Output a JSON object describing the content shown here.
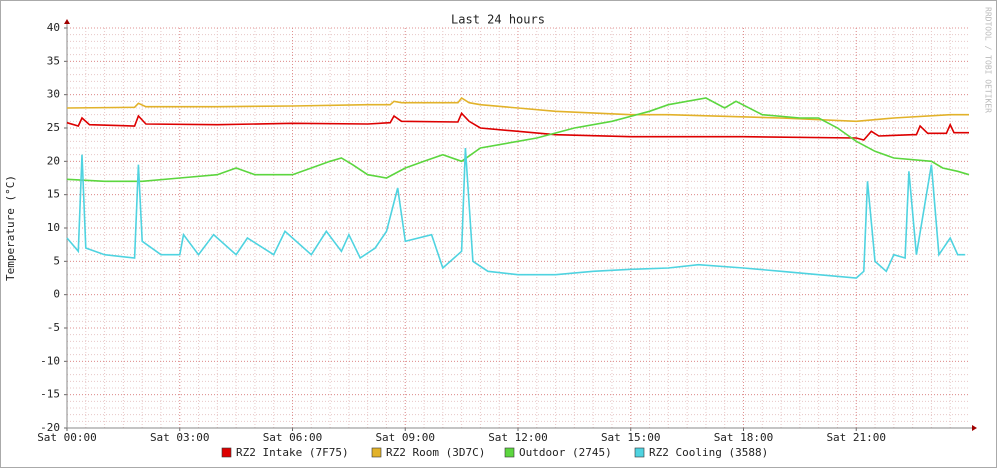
{
  "chart_data": {
    "type": "line",
    "title": "Last 24 hours",
    "y_label": "Temperature (°C)",
    "watermark": "RRDTOOL / TOBI OETIKER",
    "xlim": [
      0,
      24
    ],
    "xticks": [
      {
        "value": 0,
        "label": "Sat 00:00"
      },
      {
        "value": 3,
        "label": "Sat 03:00"
      },
      {
        "value": 6,
        "label": "Sat 06:00"
      },
      {
        "value": 9,
        "label": "Sat 09:00"
      },
      {
        "value": 12,
        "label": "Sat 12:00"
      },
      {
        "value": 15,
        "label": "Sat 15:00"
      },
      {
        "value": 18,
        "label": "Sat 18:00"
      },
      {
        "value": 21,
        "label": "Sat 21:00"
      }
    ],
    "ylim": [
      -20,
      40
    ],
    "yticks": [
      -20,
      -15,
      -10,
      -5,
      0,
      5,
      10,
      15,
      20,
      25,
      30,
      35,
      40
    ],
    "grid": true,
    "series": [
      {
        "name": "RZ2 Intake (7F75)",
        "color": "#dd0000",
        "x": [
          0,
          0.3,
          0.4,
          0.6,
          1.8,
          1.9,
          2.1,
          4,
          6,
          8,
          8.6,
          8.7,
          8.9,
          10.4,
          10.5,
          10.7,
          11,
          12,
          13,
          15,
          18,
          21,
          21.2,
          21.4,
          21.6,
          22.5,
          22.6,
          22.7,
          22.9,
          23.4,
          23.5,
          23.6,
          24
        ],
        "values": [
          25.8,
          25.3,
          26.5,
          25.5,
          25.3,
          26.8,
          25.6,
          25.5,
          25.7,
          25.6,
          25.8,
          26.8,
          26,
          25.9,
          27.2,
          26,
          25,
          24.5,
          24,
          23.7,
          23.7,
          23.5,
          23.2,
          24.5,
          23.8,
          24,
          24,
          25.3,
          24.2,
          24.2,
          25.5,
          24.3,
          24.3
        ]
      },
      {
        "name": "RZ2 Room (3D7C)",
        "color": "#e2b22a",
        "x": [
          0,
          1.8,
          1.9,
          2.1,
          4,
          6,
          8,
          8.6,
          8.7,
          8.9,
          10.4,
          10.5,
          10.7,
          11,
          12,
          13,
          15,
          16,
          19,
          21,
          22,
          23.5,
          24
        ],
        "values": [
          28,
          28.1,
          28.7,
          28.2,
          28.2,
          28.3,
          28.5,
          28.5,
          29,
          28.8,
          28.8,
          29.5,
          28.8,
          28.5,
          28,
          27.5,
          27,
          27,
          26.5,
          26,
          26.5,
          27,
          27
        ]
      },
      {
        "name": "Outdoor (2745)",
        "color": "#5cd63f",
        "x": [
          0,
          1,
          2,
          3,
          4,
          4.5,
          5,
          6,
          6.5,
          7,
          7.3,
          7.6,
          8,
          8.5,
          9,
          9.5,
          10,
          10.5,
          11,
          12,
          12.5,
          13.5,
          14.5,
          15.5,
          16,
          17,
          17.5,
          17.8,
          18.5,
          19.5,
          20,
          20.5,
          21,
          21.5,
          22,
          23,
          23.3,
          23.7,
          24
        ],
        "values": [
          17.3,
          17,
          17,
          17.5,
          18,
          19,
          18,
          18,
          19,
          20,
          20.5,
          19.5,
          18,
          17.5,
          19,
          20,
          21,
          20,
          22,
          23,
          23.5,
          25,
          26,
          27.5,
          28.5,
          29.5,
          28,
          29,
          27,
          26.5,
          26.5,
          25,
          23,
          21.5,
          20.5,
          20,
          19,
          18.5,
          18
        ]
      },
      {
        "name": "RZ2 Cooling (3588)",
        "color": "#4fd3e0",
        "x": [
          0,
          0.3,
          0.4,
          0.5,
          1,
          1.8,
          1.9,
          2,
          2.5,
          3,
          3.1,
          3.5,
          3.9,
          4.5,
          4.8,
          5.5,
          5.8,
          6.5,
          6.9,
          7.3,
          7.5,
          7.8,
          8.2,
          8.5,
          8.8,
          9,
          9.7,
          10,
          10.5,
          10.6,
          10.8,
          11.2,
          12,
          13,
          14,
          15,
          16,
          16.8,
          18,
          19,
          20,
          21,
          21.2,
          21.3,
          21.5,
          21.8,
          22,
          22.3,
          22.4,
          22.6,
          23,
          23.2,
          23.5,
          23.7,
          23.9
        ],
        "values": [
          8.5,
          6.5,
          21,
          7,
          6,
          5.5,
          19.5,
          8,
          6,
          6,
          9,
          6,
          9,
          6,
          8.5,
          6,
          9.5,
          6,
          9.5,
          6.5,
          9,
          5.5,
          7,
          9.5,
          16,
          8,
          9,
          4,
          6.5,
          22,
          5,
          3.5,
          3,
          3,
          3.5,
          3.8,
          4,
          4.5,
          4,
          3.5,
          3,
          2.5,
          3.5,
          17,
          5,
          3.5,
          6,
          5.5,
          18.5,
          6,
          19.5,
          6,
          8.5,
          6,
          6
        ]
      }
    ]
  }
}
